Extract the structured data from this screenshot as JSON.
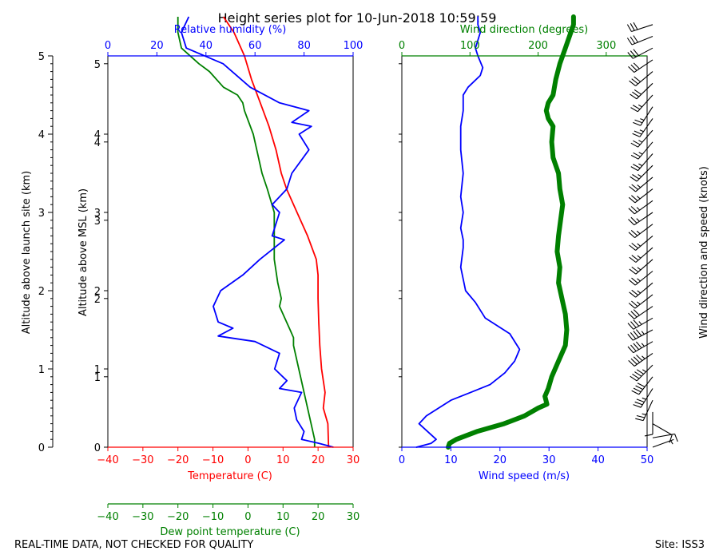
{
  "title": "Height series plot for 10-Jun-2018 10:59:59",
  "footer_left": "REAL-TIME DATA, NOT CHECKED FOR QUALITY",
  "footer_right": "Site: ISS3",
  "colors": {
    "temperature": "#ff0000",
    "dewpoint": "#008000",
    "humidity": "#0000ff",
    "wind_speed": "#0000ff",
    "wind_direction": "#008000",
    "barb": "#000000"
  },
  "chart_data": [
    {
      "type": "line",
      "name": "thermodynamic-panel",
      "left_axis_label": "Altitude above launch site (km)",
      "left_axis_ticks": [
        0,
        1,
        2,
        3,
        4,
        5
      ],
      "left_axis_range": [
        0,
        5
      ],
      "msl_axis_label": "Altitude above MSL (km)",
      "msl_axis_ticks": [
        {
          "label": "0",
          "km_above_site": 0
        },
        {
          "label": "1",
          "km_above_site": 0.9
        },
        {
          "label": "1",
          "km_above_site": 1.0
        },
        {
          "label": "2",
          "km_above_site": 1.9
        },
        {
          "label": "2",
          "km_above_site": 2.0
        },
        {
          "label": "3",
          "km_above_site": 2.9
        },
        {
          "label": "3",
          "km_above_site": 3.0
        },
        {
          "label": "4",
          "km_above_site": 3.9
        },
        {
          "label": "4",
          "km_above_site": 4.0
        },
        {
          "label": "5",
          "km_above_site": 4.9
        }
      ],
      "x_bottom": {
        "label": "Temperature (C)",
        "range": [
          -40,
          30
        ],
        "ticks": [
          -40,
          -30,
          -20,
          -10,
          0,
          10,
          20,
          30
        ]
      },
      "x_dewpoint": {
        "label": "Dew point temperature (C)",
        "range": [
          -40,
          30
        ],
        "ticks": [
          -40,
          -30,
          -20,
          -10,
          0,
          10,
          20,
          30
        ]
      },
      "x_top": {
        "label": "Relative humidity (%)",
        "range": [
          0,
          100
        ],
        "ticks": [
          0,
          20,
          40,
          60,
          80,
          100
        ]
      },
      "series": [
        {
          "name": "Temperature",
          "axis": "bottom",
          "points": [
            [
              23,
              0
            ],
            [
              22.8,
              0.3
            ],
            [
              21.5,
              0.5
            ],
            [
              22,
              0.7
            ],
            [
              21,
              1.0
            ],
            [
              20.5,
              1.3
            ],
            [
              20.2,
              1.6
            ],
            [
              20,
              1.9
            ],
            [
              20,
              2.2
            ],
            [
              19.5,
              2.4
            ],
            [
              17,
              2.7
            ],
            [
              14,
              3.0
            ],
            [
              11,
              3.3
            ],
            [
              9.5,
              3.5
            ],
            [
              8,
              3.8
            ],
            [
              6,
              4.1
            ],
            [
              3.5,
              4.4
            ],
            [
              1,
              4.7
            ],
            [
              -1,
              5.0
            ],
            [
              -4,
              5.3
            ],
            [
              -7,
              5.5
            ]
          ]
        },
        {
          "name": "Dew point temperature",
          "axis": "bottom",
          "points": [
            [
              19,
              0
            ],
            [
              19,
              0.1
            ],
            [
              18,
              0.3
            ],
            [
              16.5,
              0.6
            ],
            [
              14.5,
              1.0
            ],
            [
              13,
              1.3
            ],
            [
              13,
              1.4
            ],
            [
              12,
              1.5
            ],
            [
              11,
              1.6
            ],
            [
              9,
              1.8
            ],
            [
              9.5,
              1.9
            ],
            [
              8.5,
              2.1
            ],
            [
              7.5,
              2.4
            ],
            [
              7.5,
              2.6
            ],
            [
              7.5,
              2.8
            ],
            [
              7.5,
              3.0
            ],
            [
              5.5,
              3.3
            ],
            [
              4,
              3.5
            ],
            [
              2.5,
              3.8
            ],
            [
              1.5,
              4.0
            ],
            [
              -1,
              4.3
            ],
            [
              -1.5,
              4.4
            ],
            [
              -3,
              4.5
            ],
            [
              -7,
              4.6
            ],
            [
              -11,
              4.8
            ],
            [
              -14,
              4.9
            ],
            [
              -19,
              5.1
            ],
            [
              -20,
              5.3
            ],
            [
              -20,
              5.5
            ]
          ]
        },
        {
          "name": "Relative humidity",
          "axis": "top",
          "points": [
            [
              92,
              0
            ],
            [
              86,
              0.05
            ],
            [
              79,
              0.1
            ],
            [
              80,
              0.2
            ],
            [
              77,
              0.35
            ],
            [
              76,
              0.5
            ],
            [
              79,
              0.7
            ],
            [
              70,
              0.75
            ],
            [
              73,
              0.85
            ],
            [
              68,
              1.0
            ],
            [
              70,
              1.2
            ],
            [
              60,
              1.35
            ],
            [
              45,
              1.42
            ],
            [
              51,
              1.52
            ],
            [
              45,
              1.6
            ],
            [
              43,
              1.8
            ],
            [
              46,
              2.0
            ],
            [
              55,
              2.2
            ],
            [
              62,
              2.4
            ],
            [
              72,
              2.65
            ],
            [
              67,
              2.7
            ],
            [
              69,
              2.9
            ],
            [
              70,
              3.0
            ],
            [
              67,
              3.1
            ],
            [
              73,
              3.3
            ],
            [
              75,
              3.5
            ],
            [
              82,
              3.8
            ],
            [
              78,
              4.0
            ],
            [
              83,
              4.1
            ],
            [
              75,
              4.15
            ],
            [
              82,
              4.3
            ],
            [
              70,
              4.4
            ],
            [
              58,
              4.6
            ],
            [
              47,
              4.9
            ],
            [
              32,
              5.1
            ],
            [
              30,
              5.3
            ],
            [
              33,
              5.5
            ]
          ]
        }
      ]
    },
    {
      "type": "line",
      "name": "wind-panel",
      "x_bottom": {
        "label": "Wind speed (m/s)",
        "range": [
          0,
          50
        ],
        "ticks": [
          0,
          10,
          20,
          30,
          40,
          50
        ]
      },
      "x_top": {
        "label": "Wind direction (degrees)",
        "range": [
          0,
          360
        ],
        "ticks": [
          0,
          100,
          200,
          300
        ]
      },
      "y_range": [
        0,
        5
      ],
      "series": [
        {
          "name": "Wind speed",
          "axis": "bottom",
          "points": [
            [
              3,
              0
            ],
            [
              6,
              0.05
            ],
            [
              7,
              0.1
            ],
            [
              3.5,
              0.3
            ],
            [
              5,
              0.4
            ],
            [
              10,
              0.6
            ],
            [
              14,
              0.7
            ],
            [
              18,
              0.8
            ],
            [
              21,
              0.95
            ],
            [
              23,
              1.1
            ],
            [
              24,
              1.25
            ],
            [
              22,
              1.45
            ],
            [
              17,
              1.65
            ],
            [
              15,
              1.85
            ],
            [
              13,
              2.0
            ],
            [
              12,
              2.3
            ],
            [
              12.5,
              2.55
            ],
            [
              12.5,
              2.65
            ],
            [
              12,
              2.8
            ],
            [
              12.5,
              3.0
            ],
            [
              12,
              3.2
            ],
            [
              12.5,
              3.5
            ],
            [
              12,
              3.8
            ],
            [
              12,
              4.1
            ],
            [
              12.5,
              4.3
            ],
            [
              12.5,
              4.5
            ],
            [
              13.5,
              4.6
            ],
            [
              16,
              4.75
            ],
            [
              16.5,
              4.85
            ],
            [
              15.5,
              5.0
            ],
            [
              15,
              5.1
            ],
            [
              15.5,
              5.2
            ],
            [
              16,
              5.3
            ],
            [
              15.5,
              5.4
            ],
            [
              15.5,
              5.5
            ]
          ]
        },
        {
          "name": "Wind direction",
          "axis": "top",
          "points": [
            [
              68,
              0
            ],
            [
              70,
              0.05
            ],
            [
              80,
              0.1
            ],
            [
              110,
              0.2
            ],
            [
              150,
              0.3
            ],
            [
              180,
              0.4
            ],
            [
              200,
              0.5
            ],
            [
              213,
              0.55
            ],
            [
              210,
              0.65
            ],
            [
              215,
              0.75
            ],
            [
              220,
              0.9
            ],
            [
              230,
              1.1
            ],
            [
              240,
              1.3
            ],
            [
              242,
              1.5
            ],
            [
              240,
              1.7
            ],
            [
              235,
              1.9
            ],
            [
              230,
              2.1
            ],
            [
              232,
              2.3
            ],
            [
              228,
              2.5
            ],
            [
              230,
              2.7
            ],
            [
              233,
              2.9
            ],
            [
              236,
              3.1
            ],
            [
              232,
              3.3
            ],
            [
              230,
              3.5
            ],
            [
              222,
              3.7
            ],
            [
              220,
              3.9
            ],
            [
              222,
              4.1
            ],
            [
              215,
              4.2
            ],
            [
              212,
              4.3
            ],
            [
              215,
              4.4
            ],
            [
              222,
              4.5
            ],
            [
              226,
              4.7
            ],
            [
              232,
              4.9
            ],
            [
              240,
              5.1
            ],
            [
              248,
              5.3
            ],
            [
              252,
              5.4
            ],
            [
              252,
              5.5
            ]
          ]
        }
      ]
    },
    {
      "type": "barbs",
      "name": "wind-barbs",
      "ylabel": "Wind direction and speed (knots)",
      "barbs": [
        {
          "z": 0.0,
          "direction": 70,
          "speed_kt": 6
        },
        {
          "z": 0.12,
          "direction": 80,
          "speed_kt": 12
        },
        {
          "z": 0.3,
          "direction": 120,
          "speed_kt": 8
        },
        {
          "z": 0.45,
          "direction": 180,
          "speed_kt": 12
        },
        {
          "z": 0.6,
          "direction": 205,
          "speed_kt": 25
        },
        {
          "z": 0.75,
          "direction": 212,
          "speed_kt": 35
        },
        {
          "z": 0.9,
          "direction": 218,
          "speed_kt": 42
        },
        {
          "z": 1.05,
          "direction": 225,
          "speed_kt": 45
        },
        {
          "z": 1.2,
          "direction": 235,
          "speed_kt": 46
        },
        {
          "z": 1.35,
          "direction": 240,
          "speed_kt": 46
        },
        {
          "z": 1.5,
          "direction": 242,
          "speed_kt": 44
        },
        {
          "z": 1.65,
          "direction": 240,
          "speed_kt": 36
        },
        {
          "z": 1.8,
          "direction": 236,
          "speed_kt": 31
        },
        {
          "z": 1.95,
          "direction": 232,
          "speed_kt": 27
        },
        {
          "z": 2.1,
          "direction": 230,
          "speed_kt": 25
        },
        {
          "z": 2.25,
          "direction": 231,
          "speed_kt": 24
        },
        {
          "z": 2.4,
          "direction": 229,
          "speed_kt": 24
        },
        {
          "z": 2.55,
          "direction": 229,
          "speed_kt": 24
        },
        {
          "z": 2.7,
          "direction": 230,
          "speed_kt": 24
        },
        {
          "z": 2.85,
          "direction": 233,
          "speed_kt": 23
        },
        {
          "z": 3.0,
          "direction": 236,
          "speed_kt": 24
        },
        {
          "z": 3.15,
          "direction": 234,
          "speed_kt": 24
        },
        {
          "z": 3.3,
          "direction": 232,
          "speed_kt": 24
        },
        {
          "z": 3.45,
          "direction": 230,
          "speed_kt": 24
        },
        {
          "z": 3.6,
          "direction": 225,
          "speed_kt": 24
        },
        {
          "z": 3.75,
          "direction": 221,
          "speed_kt": 24
        },
        {
          "z": 3.9,
          "direction": 220,
          "speed_kt": 23
        },
        {
          "z": 4.05,
          "direction": 221,
          "speed_kt": 23
        },
        {
          "z": 4.2,
          "direction": 215,
          "speed_kt": 24
        },
        {
          "z": 4.35,
          "direction": 213,
          "speed_kt": 24
        },
        {
          "z": 4.5,
          "direction": 222,
          "speed_kt": 25
        },
        {
          "z": 4.65,
          "direction": 226,
          "speed_kt": 28
        },
        {
          "z": 4.8,
          "direction": 230,
          "speed_kt": 32
        },
        {
          "z": 4.95,
          "direction": 236,
          "speed_kt": 30
        },
        {
          "z": 5.1,
          "direction": 242,
          "speed_kt": 30
        },
        {
          "z": 5.25,
          "direction": 248,
          "speed_kt": 31
        },
        {
          "z": 5.4,
          "direction": 252,
          "speed_kt": 30
        }
      ]
    }
  ]
}
